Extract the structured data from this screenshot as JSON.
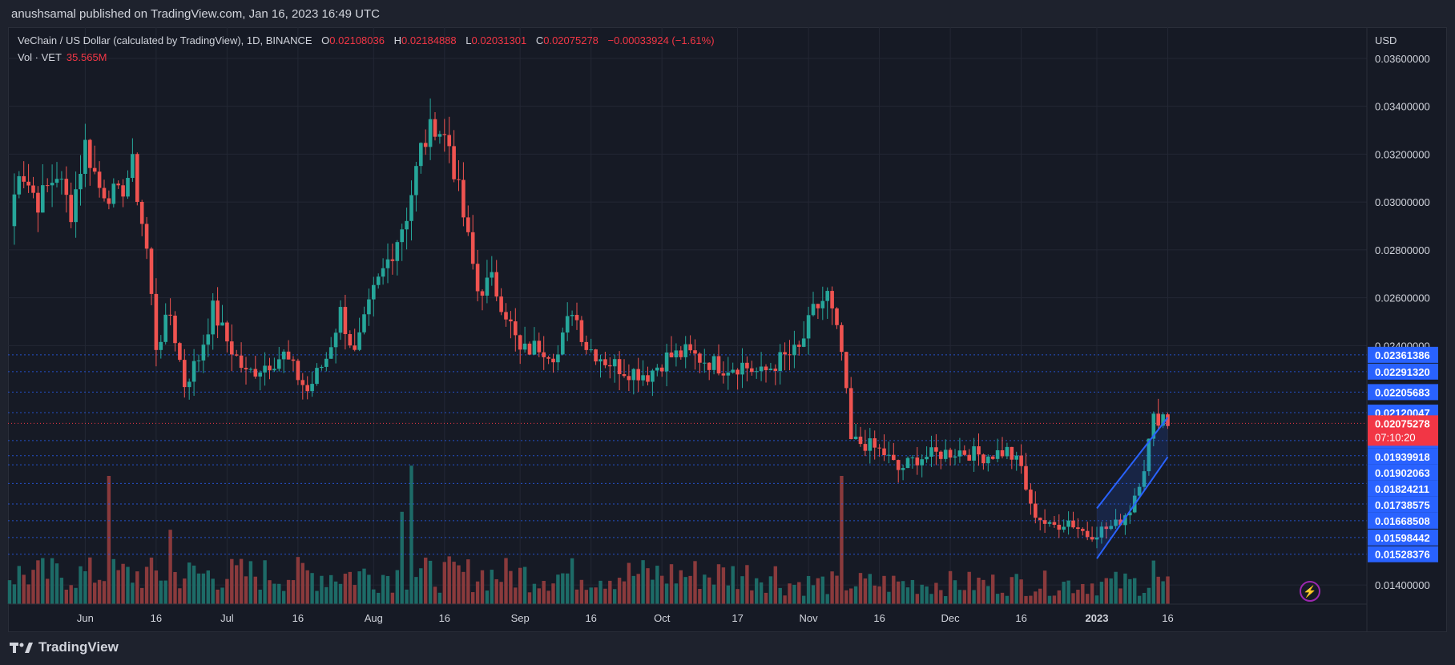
{
  "header": {
    "publisher": "anushsamal published on TradingView.com, Jan 16, 2023 16:49 UTC"
  },
  "legend": {
    "symbol": "VeChain / US Dollar (calculated by TradingView), 1D, BINANCE",
    "o_key": "O",
    "o_val": "0.02108036",
    "h_key": "H",
    "h_val": "0.02184888",
    "l_key": "L",
    "l_val": "0.02031301",
    "c_key": "C",
    "c_val": "0.02075278",
    "change": "−0.00033924 (−1.61%)",
    "vol_key": "Vol · VET",
    "vol_val": "35.565M"
  },
  "axis": {
    "currency": "USD"
  },
  "current_price": {
    "value": "0.02075278",
    "countdown": "07:10:20"
  },
  "footer": {
    "brand": "TradingView"
  },
  "colors": {
    "up": "#26a69a",
    "down": "#ef5350",
    "vol_up": "#1d6b67",
    "vol_down": "#8a3a3c",
    "level_line": "#2962ff",
    "label_bg": "#2962ff"
  },
  "chart_data": {
    "type": "candlestick",
    "title": "VeChain / US Dollar (calculated by TradingView), 1D, BINANCE",
    "ylim": [
      0.0132,
      0.0373
    ],
    "yticks": [
      "0.03600000",
      "0.03400000",
      "0.03200000",
      "0.03000000",
      "0.02800000",
      "0.02600000",
      "0.02400000",
      "0.01400000"
    ],
    "xticks": [
      {
        "date": "2022-06-01",
        "label": "Jun"
      },
      {
        "date": "2022-06-16",
        "label": "16"
      },
      {
        "date": "2022-07-01",
        "label": "Jul"
      },
      {
        "date": "2022-07-16",
        "label": "16"
      },
      {
        "date": "2022-08-01",
        "label": "Aug"
      },
      {
        "date": "2022-08-16",
        "label": "16"
      },
      {
        "date": "2022-09-01",
        "label": "Sep"
      },
      {
        "date": "2022-09-16",
        "label": "16"
      },
      {
        "date": "2022-10-01",
        "label": "Oct"
      },
      {
        "date": "2022-10-17",
        "label": "17"
      },
      {
        "date": "2022-11-01",
        "label": "Nov"
      },
      {
        "date": "2022-11-16",
        "label": "16"
      },
      {
        "date": "2022-12-01",
        "label": "Dec"
      },
      {
        "date": "2022-12-16",
        "label": "16"
      },
      {
        "date": "2023-01-01",
        "label": "2023"
      },
      {
        "date": "2023-01-16",
        "label": "16"
      }
    ],
    "date_range": [
      "2022-05-16",
      "2023-01-16"
    ],
    "levels": [
      "0.02361386",
      "0.02291320",
      "0.02205683",
      "0.02120047",
      "0.02003270",
      "0.01939918",
      "0.01902063",
      "0.01824211",
      "0.01738575",
      "0.01668508",
      "0.01598442",
      "0.01528376"
    ],
    "channel": {
      "lower": [
        [
          "2023-01-01",
          0.0151
        ],
        [
          "2023-01-16",
          0.01935
        ]
      ],
      "upper": [
        [
          "2023-01-01",
          0.0172
        ],
        [
          "2023-01-16",
          0.021
        ]
      ]
    },
    "price_path": [
      [
        "2022-05-16",
        0.029
      ],
      [
        "2022-05-18",
        0.0315
      ],
      [
        "2022-05-22",
        0.03
      ],
      [
        "2022-05-26",
        0.0312
      ],
      [
        "2022-05-29",
        0.0296
      ],
      [
        "2022-06-01",
        0.0324
      ],
      [
        "2022-06-04",
        0.0306
      ],
      [
        "2022-06-08",
        0.0302
      ],
      [
        "2022-06-11",
        0.0315
      ],
      [
        "2022-06-14",
        0.028
      ],
      [
        "2022-06-16",
        0.024
      ],
      [
        "2022-06-19",
        0.0253
      ],
      [
        "2022-06-22",
        0.0224
      ],
      [
        "2022-06-25",
        0.0235
      ],
      [
        "2022-06-28",
        0.0255
      ],
      [
        "2022-07-01",
        0.0242
      ],
      [
        "2022-07-05",
        0.0228
      ],
      [
        "2022-07-09",
        0.0232
      ],
      [
        "2022-07-13",
        0.0236
      ],
      [
        "2022-07-18",
        0.0221
      ],
      [
        "2022-07-22",
        0.0235
      ],
      [
        "2022-07-25",
        0.0254
      ],
      [
        "2022-07-28",
        0.0236
      ],
      [
        "2022-08-01",
        0.0262
      ],
      [
        "2022-08-05",
        0.028
      ],
      [
        "2022-08-08",
        0.0295
      ],
      [
        "2022-08-11",
        0.0322
      ],
      [
        "2022-08-14",
        0.0333
      ],
      [
        "2022-08-17",
        0.0324
      ],
      [
        "2022-08-20",
        0.0294
      ],
      [
        "2022-08-23",
        0.0263
      ],
      [
        "2022-08-26",
        0.0267
      ],
      [
        "2022-08-29",
        0.0254
      ],
      [
        "2022-09-01",
        0.0237
      ],
      [
        "2022-09-05",
        0.024
      ],
      [
        "2022-09-09",
        0.0236
      ],
      [
        "2022-09-12",
        0.0256
      ],
      [
        "2022-09-15",
        0.024
      ],
      [
        "2022-09-19",
        0.0234
      ],
      [
        "2022-09-23",
        0.023
      ],
      [
        "2022-09-28",
        0.0228
      ],
      [
        "2022-10-02",
        0.0235
      ],
      [
        "2022-10-06",
        0.0237
      ],
      [
        "2022-10-10",
        0.0234
      ],
      [
        "2022-10-14",
        0.0231
      ],
      [
        "2022-10-18",
        0.0232
      ],
      [
        "2022-10-22",
        0.0228
      ],
      [
        "2022-10-26",
        0.0234
      ],
      [
        "2022-10-30",
        0.0238
      ],
      [
        "2022-11-02",
        0.0254
      ],
      [
        "2022-11-05",
        0.0261
      ],
      [
        "2022-11-08",
        0.0237
      ],
      [
        "2022-11-10",
        0.02
      ],
      [
        "2022-11-13",
        0.0199
      ],
      [
        "2022-11-17",
        0.0195
      ],
      [
        "2022-11-20",
        0.0188
      ],
      [
        "2022-11-24",
        0.0193
      ],
      [
        "2022-11-29",
        0.0195
      ],
      [
        "2022-12-03",
        0.0196
      ],
      [
        "2022-12-08",
        0.0194
      ],
      [
        "2022-12-13",
        0.0196
      ],
      [
        "2022-12-16",
        0.0189
      ],
      [
        "2022-12-18",
        0.0172
      ],
      [
        "2022-12-22",
        0.0164
      ],
      [
        "2022-12-26",
        0.0167
      ],
      [
        "2022-12-30",
        0.0161
      ],
      [
        "2023-01-02",
        0.0163
      ],
      [
        "2023-01-05",
        0.0165
      ],
      [
        "2023-01-08",
        0.0172
      ],
      [
        "2023-01-11",
        0.019
      ],
      [
        "2023-01-13",
        0.0209
      ],
      [
        "2023-01-15",
        0.0211
      ],
      [
        "2023-01-16",
        0.0208
      ]
    ],
    "volume": {
      "spikes": [
        [
          "2022-06-06",
          1.0
        ],
        [
          "2022-06-19",
          0.58
        ],
        [
          "2022-08-07",
          0.72
        ],
        [
          "2022-08-09",
          1.08
        ],
        [
          "2022-11-08",
          1.0
        ],
        [
          "2023-01-13",
          0.34
        ]
      ],
      "baseline": 0.22
    }
  }
}
